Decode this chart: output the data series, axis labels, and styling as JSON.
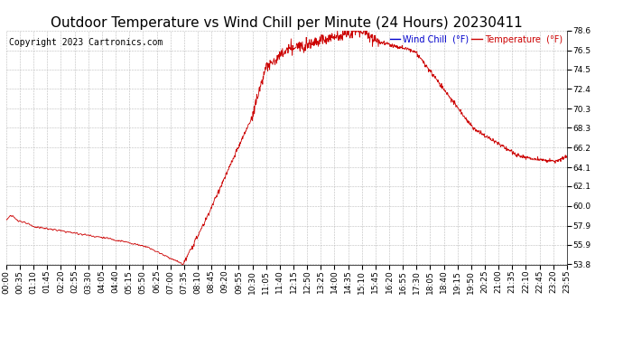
{
  "title": "Outdoor Temperature vs Wind Chill per Minute (24 Hours) 20230411",
  "copyright": "Copyright 2023 Cartronics.com",
  "legend_wind_chill": "Wind Chill  (°F)",
  "legend_temperature": "Temperature  (°F)",
  "line_color": "#cc0000",
  "wind_chill_color": "#0000cc",
  "temperature_color": "#cc0000",
  "background_color": "#ffffff",
  "grid_color": "#bbbbbb",
  "ylim_min": 53.8,
  "ylim_max": 78.6,
  "yticks": [
    53.8,
    55.9,
    57.9,
    60.0,
    62.1,
    64.1,
    66.2,
    68.3,
    70.3,
    72.4,
    74.5,
    76.5,
    78.6
  ],
  "xtick_labels": [
    "00:00",
    "00:35",
    "01:10",
    "01:45",
    "02:20",
    "02:55",
    "03:30",
    "04:05",
    "04:40",
    "05:15",
    "05:50",
    "06:25",
    "07:00",
    "07:35",
    "08:10",
    "08:45",
    "09:20",
    "09:55",
    "10:30",
    "11:05",
    "11:40",
    "12:15",
    "12:50",
    "13:25",
    "14:00",
    "14:35",
    "15:10",
    "15:45",
    "16:20",
    "16:55",
    "17:30",
    "18:05",
    "18:40",
    "19:15",
    "19:50",
    "20:25",
    "21:00",
    "21:35",
    "22:10",
    "22:45",
    "23:20",
    "23:55"
  ],
  "title_fontsize": 11,
  "axis_fontsize": 6.5,
  "copyright_fontsize": 7
}
